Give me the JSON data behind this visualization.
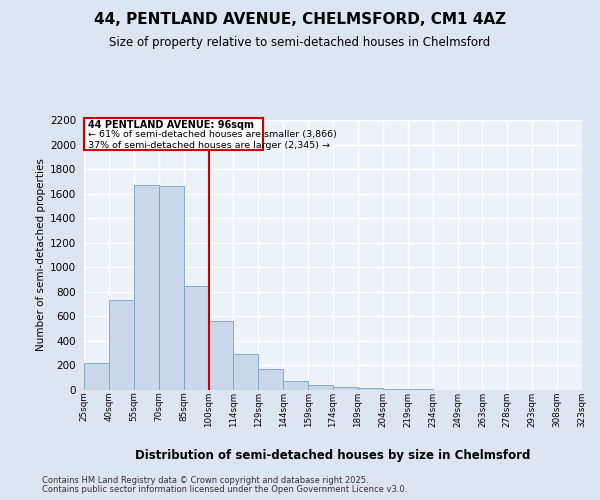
{
  "title": "44, PENTLAND AVENUE, CHELMSFORD, CM1 4AZ",
  "subtitle": "Size of property relative to semi-detached houses in Chelmsford",
  "xlabel": "Distribution of semi-detached houses by size in Chelmsford",
  "ylabel": "Number of semi-detached properties",
  "bin_labels": [
    "25sqm",
    "40sqm",
    "55sqm",
    "70sqm",
    "85sqm",
    "100sqm",
    "114sqm",
    "129sqm",
    "144sqm",
    "159sqm",
    "174sqm",
    "189sqm",
    "204sqm",
    "219sqm",
    "234sqm",
    "249sqm",
    "263sqm",
    "278sqm",
    "293sqm",
    "308sqm",
    "323sqm"
  ],
  "values": [
    220,
    730,
    1670,
    1660,
    845,
    560,
    295,
    175,
    70,
    40,
    25,
    15,
    10,
    5,
    3,
    2,
    2,
    1,
    1,
    0
  ],
  "annotation_title": "44 PENTLAND AVENUE: 96sqm",
  "annotation_line1": "← 61% of semi-detached houses are smaller (3,866)",
  "annotation_line2": "37% of semi-detached houses are larger (2,345) →",
  "bar_color": "#c8d8ea",
  "bar_edge_color": "#7aA0c0",
  "vline_color": "#cc0000",
  "ylim_max": 2200,
  "yticks": [
    0,
    200,
    400,
    600,
    800,
    1000,
    1200,
    1400,
    1600,
    1800,
    2000,
    2200
  ],
  "bg_color": "#dde5f0",
  "plot_bg_color": "#edf2f9",
  "grid_color": "#ffffff",
  "footer_line1": "Contains HM Land Registry data © Crown copyright and database right 2025.",
  "footer_line2": "Contains public sector information licensed under the Open Government Licence v3.0."
}
